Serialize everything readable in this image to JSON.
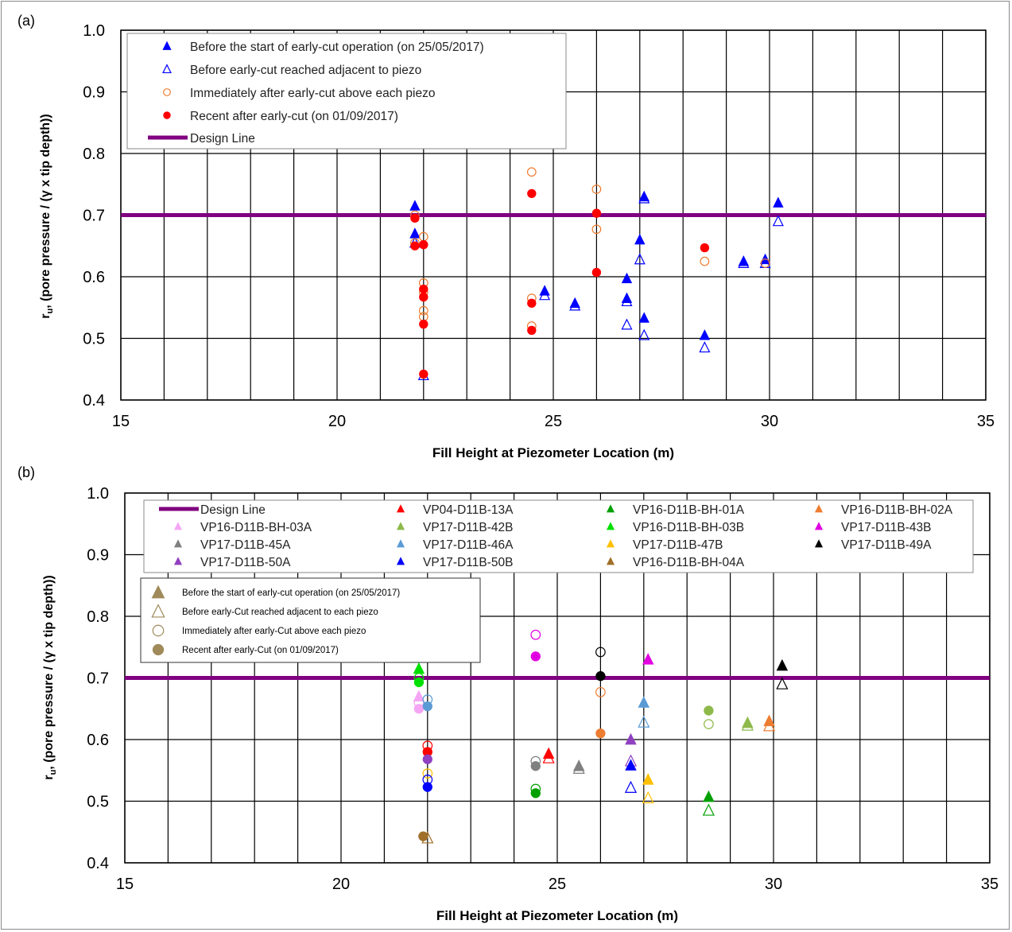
{
  "chart_data": [
    {
      "panel_label": "(a)",
      "type": "scatter",
      "xlabel": "Fill Height at Piezometer Location (m)",
      "ylabel_main": "r",
      "ylabel_sub": "u",
      "ylabel_rest": ", (pore pressure / (γ x tip depth))",
      "xlim": [
        15,
        35
      ],
      "ylim": [
        0.4,
        1.0
      ],
      "x_ticks": [
        "15",
        "20",
        "25",
        "30",
        "35"
      ],
      "y_ticks": [
        "0.4",
        "0.5",
        "0.6",
        "0.7",
        "0.8",
        "0.9",
        "1.0"
      ],
      "grid": true,
      "legend_position": "top-left",
      "design_line": {
        "name": "Design Line",
        "y": 0.7,
        "color": "#800080"
      },
      "series": [
        {
          "name": "Before the start of early-cut operation (on 25/05/2017)",
          "marker": "triangle-filled",
          "color": "#0000ff",
          "points": [
            [
              21.8,
              0.715
            ],
            [
              21.8,
              0.67
            ],
            [
              24.8,
              0.577
            ],
            [
              25.5,
              0.557
            ],
            [
              26.7,
              0.597
            ],
            [
              26.7,
              0.565
            ],
            [
              27.0,
              0.66
            ],
            [
              27.1,
              0.73
            ],
            [
              27.1,
              0.533
            ],
            [
              28.5,
              0.505
            ],
            [
              29.4,
              0.625
            ],
            [
              29.9,
              0.628
            ],
            [
              30.2,
              0.72
            ]
          ]
        },
        {
          "name": "Before early-cut reached adjacent to piezo",
          "marker": "triangle-open",
          "color": "#0000ff",
          "points": [
            [
              21.8,
              0.655
            ],
            [
              22.0,
              0.44
            ],
            [
              24.8,
              0.57
            ],
            [
              25.5,
              0.553
            ],
            [
              26.7,
              0.56
            ],
            [
              26.7,
              0.522
            ],
            [
              27.0,
              0.628
            ],
            [
              27.1,
              0.727
            ],
            [
              27.1,
              0.505
            ],
            [
              28.5,
              0.485
            ],
            [
              29.4,
              0.622
            ],
            [
              29.9,
              0.622
            ],
            [
              30.2,
              0.69
            ]
          ]
        },
        {
          "name": "Immediately after early-cut above each piezo",
          "marker": "circle-open",
          "color": "#ed7d31",
          "points": [
            [
              21.8,
              0.7
            ],
            [
              21.8,
              0.655
            ],
            [
              22.0,
              0.665
            ],
            [
              22.0,
              0.59
            ],
            [
              22.0,
              0.575
            ],
            [
              22.0,
              0.545
            ],
            [
              22.0,
              0.535
            ],
            [
              24.5,
              0.77
            ],
            [
              24.5,
              0.565
            ],
            [
              24.5,
              0.52
            ],
            [
              26.0,
              0.742
            ],
            [
              26.0,
              0.677
            ],
            [
              28.5,
              0.625
            ],
            [
              29.9,
              0.622
            ]
          ]
        },
        {
          "name": "Recent after early-cut (on 01/09/2017)",
          "marker": "circle-filled",
          "color": "#ff0000",
          "points": [
            [
              21.8,
              0.695
            ],
            [
              21.8,
              0.65
            ],
            [
              22.0,
              0.652
            ],
            [
              22.0,
              0.58
            ],
            [
              22.0,
              0.567
            ],
            [
              22.0,
              0.523
            ],
            [
              22.0,
              0.442
            ],
            [
              24.5,
              0.735
            ],
            [
              24.5,
              0.557
            ],
            [
              24.5,
              0.513
            ],
            [
              26.0,
              0.703
            ],
            [
              26.0,
              0.607
            ],
            [
              28.5,
              0.647
            ]
          ]
        }
      ]
    },
    {
      "panel_label": "(b)",
      "type": "scatter",
      "xlabel": "Fill Height at Piezometer Location (m)",
      "ylabel_main": "r",
      "ylabel_sub": "u",
      "ylabel_rest": ", (pore pressure / (γ x tip depth))",
      "xlim": [
        15,
        35
      ],
      "ylim": [
        0.4,
        1.0
      ],
      "x_ticks": [
        "15",
        "20",
        "25",
        "30",
        "35"
      ],
      "y_ticks": [
        "0.4",
        "0.5",
        "0.6",
        "0.7",
        "0.8",
        "0.9",
        "1.0"
      ],
      "grid": true,
      "legend_position": "top",
      "design_line": {
        "name": "Design Line",
        "y": 0.7,
        "color": "#800080"
      },
      "legend_entries": [
        {
          "name": "Design Line",
          "color": "#800080",
          "kind": "line"
        },
        {
          "name": "VP04-D11B-13A",
          "color": "#ff0000",
          "kind": "triangle"
        },
        {
          "name": "VP16-D11B-BH-01A",
          "color": "#00a000",
          "kind": "triangle"
        },
        {
          "name": "VP16-D11B-BH-02A",
          "color": "#ed7d31",
          "kind": "triangle"
        },
        {
          "name": "VP16-D11B-BH-03A",
          "color": "#f4a6f4",
          "kind": "triangle"
        },
        {
          "name": "VP17-D11B-42B",
          "color": "#8db94a",
          "kind": "triangle"
        },
        {
          "name": "VP16-D11B-BH-03B",
          "color": "#00e000",
          "kind": "triangle"
        },
        {
          "name": "VP17-D11B-43B",
          "color": "#e000e0",
          "kind": "triangle"
        },
        {
          "name": "VP17-D11B-45A",
          "color": "#808080",
          "kind": "triangle"
        },
        {
          "name": "VP17-D11B-46A",
          "color": "#5b9bd5",
          "kind": "triangle"
        },
        {
          "name": "VP17-D11B-47B",
          "color": "#ffc000",
          "kind": "triangle"
        },
        {
          "name": "VP17-D11B-49A",
          "color": "#000000",
          "kind": "triangle"
        },
        {
          "name": "VP17-D11B-50A",
          "color": "#9040c0",
          "kind": "triangle"
        },
        {
          "name": "VP17-D11B-50B",
          "color": "#0000ff",
          "kind": "triangle"
        },
        {
          "name": "VP16-D11B-BH-04A",
          "color": "#a0702a",
          "kind": "triangle"
        }
      ],
      "marker_key": [
        {
          "name": "Before the start of early-cut operation (on 25/05/2017)",
          "marker": "triangle-filled"
        },
        {
          "name": "Before early-Cut reached adjacent to each piezo",
          "marker": "triangle-open"
        },
        {
          "name": "Immediately after early-Cut above each piezo",
          "marker": "circle-open"
        },
        {
          "name": "Recent after early-Cut (on 01/09/2017)",
          "marker": "circle-filled"
        }
      ],
      "marker_key_color": "#a08a5a",
      "points": [
        {
          "x": 21.8,
          "y": 0.715,
          "m": "triangle-filled",
          "c": "#00e000"
        },
        {
          "x": 21.8,
          "y": 0.7,
          "m": "circle-open",
          "c": "#00e000"
        },
        {
          "x": 21.8,
          "y": 0.693,
          "m": "circle-filled",
          "c": "#00e000"
        },
        {
          "x": 21.8,
          "y": 0.67,
          "m": "triangle-filled",
          "c": "#f4a6f4"
        },
        {
          "x": 21.8,
          "y": 0.66,
          "m": "circle-open",
          "c": "#f4a6f4"
        },
        {
          "x": 21.8,
          "y": 0.65,
          "m": "circle-filled",
          "c": "#f4a6f4"
        },
        {
          "x": 22.0,
          "y": 0.665,
          "m": "circle-open",
          "c": "#5b9bd5"
        },
        {
          "x": 22.0,
          "y": 0.654,
          "m": "circle-filled",
          "c": "#5b9bd5"
        },
        {
          "x": 22.0,
          "y": 0.59,
          "m": "circle-open",
          "c": "#ff0000"
        },
        {
          "x": 22.0,
          "y": 0.58,
          "m": "circle-filled",
          "c": "#ff0000"
        },
        {
          "x": 22.0,
          "y": 0.568,
          "m": "circle-filled",
          "c": "#9040c0"
        },
        {
          "x": 22.0,
          "y": 0.545,
          "m": "circle-open",
          "c": "#ffc000"
        },
        {
          "x": 22.0,
          "y": 0.535,
          "m": "circle-open",
          "c": "#0000ff"
        },
        {
          "x": 22.0,
          "y": 0.523,
          "m": "circle-filled",
          "c": "#0000ff"
        },
        {
          "x": 21.9,
          "y": 0.443,
          "m": "circle-filled",
          "c": "#a0702a"
        },
        {
          "x": 22.0,
          "y": 0.44,
          "m": "triangle-open",
          "c": "#a0702a"
        },
        {
          "x": 24.5,
          "y": 0.77,
          "m": "circle-open",
          "c": "#e000e0"
        },
        {
          "x": 24.5,
          "y": 0.735,
          "m": "circle-filled",
          "c": "#e000e0"
        },
        {
          "x": 24.5,
          "y": 0.565,
          "m": "circle-open",
          "c": "#808080"
        },
        {
          "x": 24.5,
          "y": 0.557,
          "m": "circle-filled",
          "c": "#808080"
        },
        {
          "x": 24.5,
          "y": 0.52,
          "m": "circle-open",
          "c": "#00a000"
        },
        {
          "x": 24.5,
          "y": 0.513,
          "m": "circle-filled",
          "c": "#00a000"
        },
        {
          "x": 24.8,
          "y": 0.577,
          "m": "triangle-filled",
          "c": "#ff0000"
        },
        {
          "x": 24.8,
          "y": 0.57,
          "m": "triangle-open",
          "c": "#ff0000"
        },
        {
          "x": 25.5,
          "y": 0.557,
          "m": "triangle-filled",
          "c": "#808080"
        },
        {
          "x": 25.5,
          "y": 0.553,
          "m": "triangle-open",
          "c": "#808080"
        },
        {
          "x": 26.0,
          "y": 0.742,
          "m": "circle-open",
          "c": "#000000"
        },
        {
          "x": 26.0,
          "y": 0.703,
          "m": "circle-filled",
          "c": "#000000"
        },
        {
          "x": 26.0,
          "y": 0.677,
          "m": "circle-open",
          "c": "#ed7d31"
        },
        {
          "x": 26.0,
          "y": 0.61,
          "m": "circle-filled",
          "c": "#ed7d31"
        },
        {
          "x": 26.7,
          "y": 0.6,
          "m": "triangle-filled",
          "c": "#9040c0"
        },
        {
          "x": 26.7,
          "y": 0.565,
          "m": "triangle-open",
          "c": "#9040c0"
        },
        {
          "x": 26.7,
          "y": 0.558,
          "m": "triangle-filled",
          "c": "#0000ff"
        },
        {
          "x": 26.7,
          "y": 0.522,
          "m": "triangle-open",
          "c": "#0000ff"
        },
        {
          "x": 27.0,
          "y": 0.66,
          "m": "triangle-filled",
          "c": "#5b9bd5"
        },
        {
          "x": 27.0,
          "y": 0.628,
          "m": "triangle-open",
          "c": "#5b9bd5"
        },
        {
          "x": 27.1,
          "y": 0.73,
          "m": "triangle-filled",
          "c": "#e000e0"
        },
        {
          "x": 27.1,
          "y": 0.535,
          "m": "triangle-filled",
          "c": "#ffc000"
        },
        {
          "x": 27.1,
          "y": 0.505,
          "m": "triangle-open",
          "c": "#ffc000"
        },
        {
          "x": 28.5,
          "y": 0.647,
          "m": "circle-filled",
          "c": "#8db94a"
        },
        {
          "x": 28.5,
          "y": 0.625,
          "m": "circle-open",
          "c": "#8db94a"
        },
        {
          "x": 28.5,
          "y": 0.507,
          "m": "triangle-filled",
          "c": "#00a000"
        },
        {
          "x": 28.5,
          "y": 0.485,
          "m": "triangle-open",
          "c": "#00a000"
        },
        {
          "x": 29.4,
          "y": 0.627,
          "m": "triangle-filled",
          "c": "#8db94a"
        },
        {
          "x": 29.4,
          "y": 0.623,
          "m": "triangle-open",
          "c": "#8db94a"
        },
        {
          "x": 29.9,
          "y": 0.63,
          "m": "triangle-filled",
          "c": "#ed7d31"
        },
        {
          "x": 29.9,
          "y": 0.622,
          "m": "triangle-open",
          "c": "#ed7d31"
        },
        {
          "x": 30.2,
          "y": 0.72,
          "m": "triangle-filled",
          "c": "#000000"
        },
        {
          "x": 30.2,
          "y": 0.69,
          "m": "triangle-open",
          "c": "#000000"
        }
      ]
    }
  ]
}
